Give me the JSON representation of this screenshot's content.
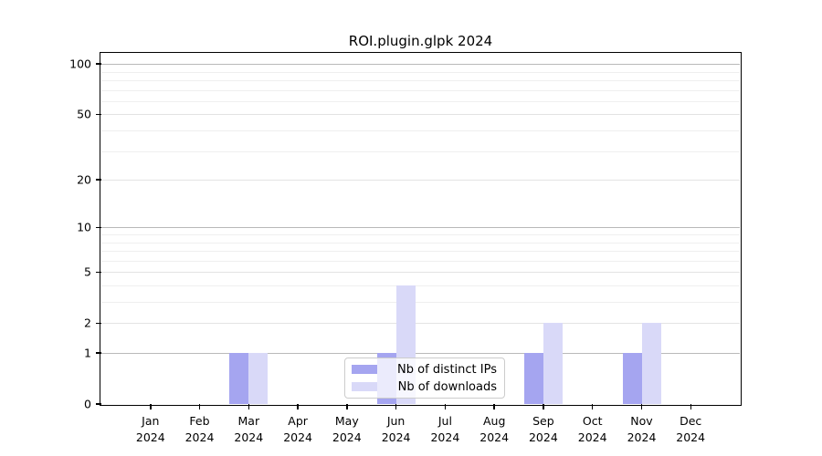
{
  "title": "ROI.plugin.glpk 2024",
  "chart_data": {
    "type": "bar",
    "title": "ROI.plugin.glpk 2024",
    "xlabel": "",
    "ylabel": "",
    "scale": "log1p",
    "ylim": [
      0,
      115
    ],
    "y_ticks": [
      0,
      1,
      2,
      5,
      10,
      20,
      50,
      100
    ],
    "y_minor_ticks": [
      3,
      4,
      6,
      7,
      8,
      9,
      30,
      40,
      60,
      70,
      80,
      90
    ],
    "emphasized_gridlines": [
      1,
      10,
      100
    ],
    "grid": "on",
    "categories": [
      "Jan 2024",
      "Feb 2024",
      "Mar 2024",
      "Apr 2024",
      "May 2024",
      "Jun 2024",
      "Jul 2024",
      "Aug 2024",
      "Sep 2024",
      "Oct 2024",
      "Nov 2024",
      "Dec 2024"
    ],
    "series": [
      {
        "name": "Nb of distinct IPs",
        "color": "#a5a5f0",
        "values": [
          0,
          0,
          1,
          0,
          0,
          1,
          0,
          0,
          1,
          0,
          1,
          0
        ]
      },
      {
        "name": "Nb of downloads",
        "color": "#d9d9f8",
        "values": [
          0,
          0,
          1,
          0,
          0,
          4,
          0,
          0,
          2,
          0,
          2,
          0
        ]
      }
    ],
    "legend_position": "lower center",
    "colors": {
      "frame": "#000000",
      "grid_major_decade": "#b9b9b9",
      "grid_major": "#e3e3e3",
      "grid_minor": "#efefef",
      "background": "#ffffff",
      "text": "#000000"
    }
  }
}
